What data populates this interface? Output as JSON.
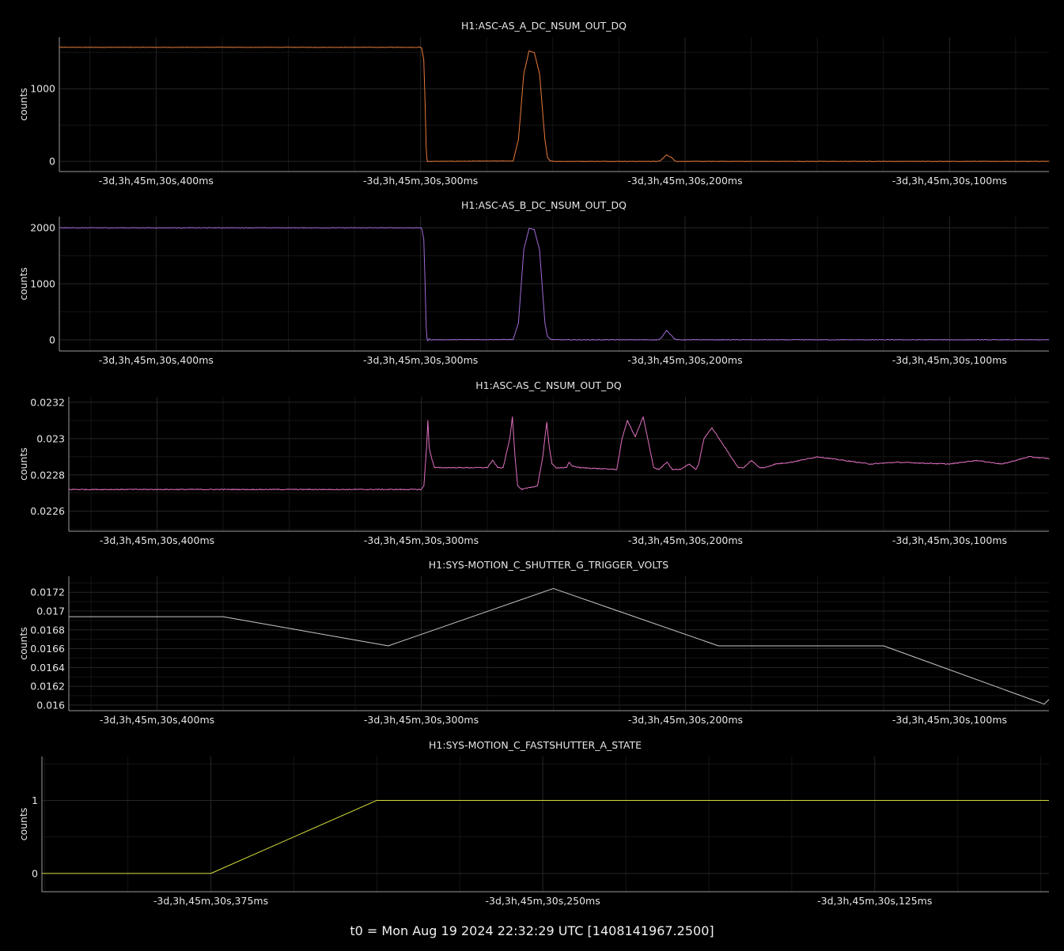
{
  "footer": {
    "t0_label": "t0 = Mon Aug 19 2024 22:32:29 UTC [1408141967.2500]"
  },
  "chart_data": [
    {
      "type": "line",
      "title": "H1:ASC-AS_A_DC_NSUM_OUT_DQ",
      "xlabel": "",
      "ylabel": "counts",
      "color": "#e87a3c",
      "xlim": [
        -0.4366,
        -0.0624
      ],
      "ylim": [
        -140,
        1710
      ],
      "yticks": [
        0,
        1000
      ],
      "ytick_labels": [
        "0",
        "1000"
      ],
      "xticks": [
        -0.4,
        -0.3,
        -0.2,
        -0.1
      ],
      "xtick_labels": [
        "-3d,3h,45m,30s,400ms",
        "-3d,3h,45m,30s,300ms",
        "-3d,3h,45m,30s,200ms",
        "-3d,3h,45m,30s,100ms"
      ],
      "minor_xticks": [
        -0.425,
        -0.375,
        -0.35,
        -0.325,
        -0.275,
        -0.25,
        -0.225,
        -0.175,
        -0.15,
        -0.125,
        -0.075
      ],
      "minor_yticks": [
        500,
        1500
      ],
      "grid": true,
      "noise": 3,
      "x": [
        -0.4366,
        -0.3,
        -0.2996,
        -0.2988,
        -0.2983,
        -0.2979,
        -0.2976,
        -0.2974,
        -0.297,
        -0.296,
        -0.265,
        -0.263,
        -0.261,
        -0.259,
        -0.257,
        -0.255,
        -0.253,
        -0.252,
        -0.251,
        -0.249,
        -0.21,
        -0.209,
        -0.207,
        -0.205,
        -0.204,
        -0.203,
        -0.0624
      ],
      "y": [
        1570,
        1570,
        1560,
        1400,
        800,
        200,
        30,
        -5,
        0,
        0,
        5,
        300,
        1200,
        1520,
        1500,
        1200,
        300,
        50,
        5,
        0,
        0,
        20,
        90,
        50,
        10,
        0,
        0
      ]
    },
    {
      "type": "line",
      "title": "H1:ASC-AS_B_DC_NSUM_OUT_DQ",
      "xlabel": "",
      "ylabel": "counts",
      "color": "#a06bd6",
      "xlim": [
        -0.4366,
        -0.0624
      ],
      "ylim": [
        -200,
        2200
      ],
      "yticks": [
        0,
        1000,
        2000
      ],
      "ytick_labels": [
        "0",
        "1000",
        "2000"
      ],
      "xticks": [
        -0.4,
        -0.3,
        -0.2,
        -0.1
      ],
      "xtick_labels": [
        "-3d,3h,45m,30s,400ms",
        "-3d,3h,45m,30s,300ms",
        "-3d,3h,45m,30s,200ms",
        "-3d,3h,45m,30s,100ms"
      ],
      "minor_xticks": [
        -0.425,
        -0.375,
        -0.35,
        -0.325,
        -0.275,
        -0.25,
        -0.225,
        -0.175,
        -0.15,
        -0.125,
        -0.075
      ],
      "minor_yticks": [
        500,
        1500
      ],
      "grid": true,
      "noise": 6,
      "x": [
        -0.4366,
        -0.3,
        -0.2996,
        -0.2988,
        -0.2983,
        -0.2979,
        -0.2976,
        -0.2973,
        -0.2968,
        -0.296,
        -0.265,
        -0.263,
        -0.261,
        -0.259,
        -0.257,
        -0.255,
        -0.253,
        -0.252,
        -0.251,
        -0.249,
        -0.21,
        -0.209,
        -0.207,
        -0.205,
        -0.204,
        -0.203,
        -0.0624
      ],
      "y": [
        2000,
        2000,
        1990,
        1800,
        1000,
        250,
        30,
        -20,
        15,
        0,
        5,
        300,
        1600,
        1990,
        1970,
        1600,
        300,
        60,
        10,
        0,
        0,
        30,
        170,
        70,
        15,
        0,
        0
      ]
    },
    {
      "type": "line",
      "title": "H1:ASC-AS_C_NSUM_OUT_DQ",
      "xlabel": "",
      "ylabel": "counts",
      "color": "#e070c0",
      "xlim": [
        -0.4334,
        -0.0624
      ],
      "ylim": [
        0.02249,
        0.02323
      ],
      "yticks": [
        0.0226,
        0.0228,
        0.023,
        0.0232
      ],
      "ytick_labels": [
        "0.0226",
        "0.0228",
        "0.023",
        "0.0232"
      ],
      "xticks": [
        -0.4,
        -0.3,
        -0.2,
        -0.1
      ],
      "xtick_labels": [
        "-3d,3h,45m,30s,400ms",
        "-3d,3h,45m,30s,300ms",
        "-3d,3h,45m,30s,200ms",
        "-3d,3h,45m,30s,100ms"
      ],
      "minor_xticks": [
        -0.425,
        -0.375,
        -0.35,
        -0.325,
        -0.275,
        -0.25,
        -0.225,
        -0.175,
        -0.15,
        -0.125,
        -0.075
      ],
      "minor_yticks": [
        0.0225,
        0.0227,
        0.0229,
        0.0231
      ],
      "grid": true,
      "noise": 2.5e-06,
      "x": [
        -0.4334,
        -0.3,
        -0.299,
        -0.298,
        -0.2975,
        -0.297,
        -0.2962,
        -0.295,
        -0.275,
        -0.273,
        -0.271,
        -0.269,
        -0.2665,
        -0.2655,
        -0.2645,
        -0.2635,
        -0.262,
        -0.256,
        -0.254,
        -0.2525,
        -0.2515,
        -0.2505,
        -0.249,
        -0.245,
        -0.244,
        -0.243,
        -0.24,
        -0.226,
        -0.224,
        -0.222,
        -0.219,
        -0.216,
        -0.214,
        -0.212,
        -0.21,
        -0.207,
        -0.205,
        -0.202,
        -0.1985,
        -0.196,
        -0.195,
        -0.193,
        -0.19,
        -0.18,
        -0.178,
        -0.175,
        -0.172,
        -0.17,
        -0.168,
        -0.166,
        -0.16,
        -0.15,
        -0.13,
        -0.12,
        -0.1,
        -0.09,
        -0.08,
        -0.07,
        -0.0624
      ],
      "y": [
        0.02272,
        0.02272,
        0.02274,
        0.02295,
        0.0231,
        0.02295,
        0.0229,
        0.02284,
        0.02284,
        0.02288,
        0.02284,
        0.02284,
        0.023,
        0.02312,
        0.0229,
        0.02274,
        0.02272,
        0.02274,
        0.0229,
        0.02309,
        0.02295,
        0.02286,
        0.02284,
        0.02284,
        0.02287,
        0.02285,
        0.02284,
        0.02283,
        0.023,
        0.0231,
        0.02301,
        0.02312,
        0.02298,
        0.02284,
        0.02283,
        0.02287,
        0.02283,
        0.02283,
        0.02286,
        0.02283,
        0.02286,
        0.023,
        0.02306,
        0.02284,
        0.02284,
        0.02288,
        0.02284,
        0.02284,
        0.02285,
        0.02286,
        0.02287,
        0.0229,
        0.02286,
        0.02287,
        0.02286,
        0.02288,
        0.02286,
        0.0229,
        0.02289
      ]
    },
    {
      "type": "line",
      "title": "H1:SYS-MOTION_C_SHUTTER_G_TRIGGER_VOLTS",
      "xlabel": "",
      "ylabel": "counts",
      "color": "#c8c8c8",
      "xlim": [
        -0.4334,
        -0.0624
      ],
      "ylim": [
        0.01594,
        0.01737
      ],
      "yticks": [
        0.016,
        0.0162,
        0.0164,
        0.0166,
        0.0168,
        0.017,
        0.0172
      ],
      "ytick_labels": [
        "0.016",
        "0.0162",
        "0.0164",
        "0.0166",
        "0.0168",
        "0.017",
        "0.0172"
      ],
      "xticks": [
        -0.4,
        -0.3,
        -0.2,
        -0.1
      ],
      "xtick_labels": [
        "-3d,3h,45m,30s,400ms",
        "-3d,3h,45m,30s,300ms",
        "-3d,3h,45m,30s,200ms",
        "-3d,3h,45m,30s,100ms"
      ],
      "minor_xticks": [
        -0.425,
        -0.375,
        -0.35,
        -0.325,
        -0.275,
        -0.25,
        -0.225,
        -0.175,
        -0.15,
        -0.125,
        -0.075
      ],
      "minor_yticks": [
        0.0161,
        0.0163,
        0.0165,
        0.0167,
        0.0169,
        0.0171,
        0.0173
      ],
      "grid": true,
      "noise": 0,
      "x": [
        -0.4334,
        -0.375,
        -0.3125,
        -0.25,
        -0.1875,
        -0.125,
        -0.0642,
        -0.0624
      ],
      "y": [
        0.01694,
        0.01694,
        0.01663,
        0.01724,
        0.01663,
        0.01663,
        0.01601,
        0.01606
      ]
    },
    {
      "type": "line",
      "title": "H1:SYS-MOTION_C_FASTSHUTTER_A_STATE",
      "xlabel": "",
      "ylabel": "counts",
      "color": "#d4dc3c",
      "xlim": [
        -0.4386,
        -0.0594
      ],
      "ylim": [
        -0.25,
        1.6
      ],
      "yticks": [
        0,
        1
      ],
      "ytick_labels": [
        "0",
        "1"
      ],
      "xticks": [
        -0.375,
        -0.25,
        -0.125
      ],
      "xtick_labels": [
        "-3d,3h,45m,30s,375ms",
        "-3d,3h,45m,30s,250ms",
        "-3d,3h,45m,30s,125ms"
      ],
      "minor_xticks": [
        -0.4375,
        -0.40625,
        -0.34375,
        -0.3125,
        -0.28125,
        -0.21875,
        -0.1875,
        -0.15625,
        -0.09375,
        -0.0625
      ],
      "minor_yticks": [
        0.5,
        1.5
      ],
      "grid": true,
      "noise": 0,
      "x": [
        -0.4386,
        -0.375,
        -0.3125,
        -0.0594
      ],
      "y": [
        0,
        0,
        1,
        1
      ]
    }
  ]
}
